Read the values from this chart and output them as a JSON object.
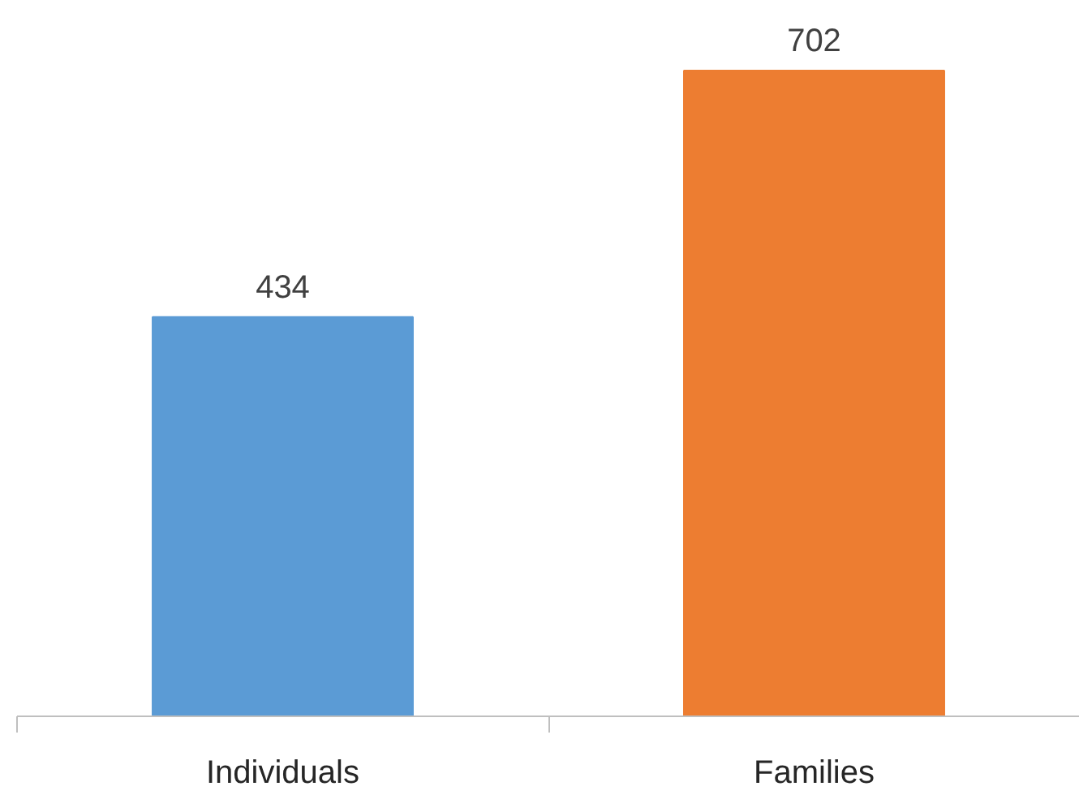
{
  "chart_data": {
    "type": "bar",
    "categories": [
      "Individuals",
      "Families"
    ],
    "values": [
      434,
      702
    ],
    "colors": [
      "#5b9bd5",
      "#ed7d31"
    ],
    "data_labels": true,
    "grid": false,
    "tick_labels": "x"
  }
}
